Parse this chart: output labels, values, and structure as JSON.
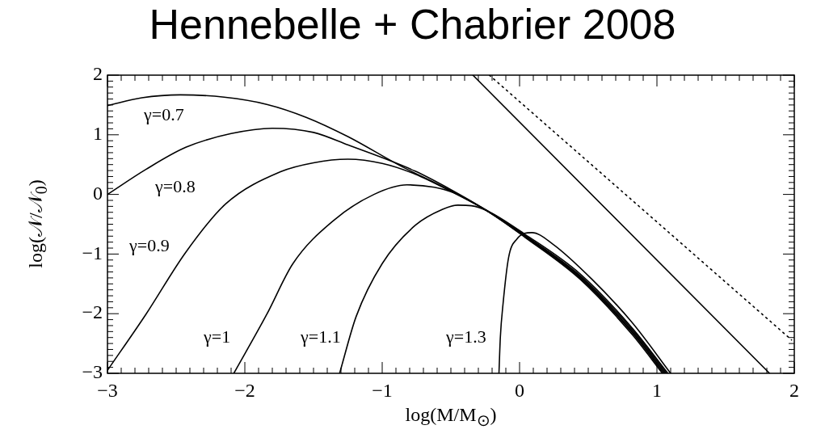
{
  "chart_data": {
    "type": "line",
    "title": "Hennebelle + Chabrier 2008",
    "xlabel": "log(M/M$_{⊙}$)",
    "ylabel": "log(𝒩/𝒩$_{0}$)",
    "xlim": [
      -3,
      2
    ],
    "xticks": [
      -3,
      -2,
      -1,
      0,
      1,
      2
    ],
    "ylim": [
      -3,
      2
    ],
    "yticks": [
      -3,
      -2,
      -1,
      0,
      1,
      2
    ],
    "grid": false,
    "legend": false,
    "series": [
      {
        "name": "γ=0.7",
        "color": "#000000",
        "x": [
          -3,
          -2.75,
          -2.47,
          -2.15,
          -1.84,
          -1.55,
          -1.25,
          -0.86,
          -0.55,
          -0.24,
          0.04,
          0.44,
          0.82,
          1.04
        ],
        "values": [
          1.49,
          1.62,
          1.67,
          1.63,
          1.51,
          1.29,
          0.97,
          0.47,
          0.12,
          -0.27,
          -0.72,
          -1.42,
          -2.35,
          -3
        ]
      },
      {
        "name": "γ=0.8",
        "color": "#000000",
        "x": [
          -3,
          -2.72,
          -2.43,
          -2.1,
          -1.8,
          -1.5,
          -1.25,
          -0.76,
          -0.5,
          -0.24,
          0.04,
          0.44,
          0.82,
          1.05
        ],
        "values": [
          0,
          0.42,
          0.79,
          1.02,
          1.11,
          1.04,
          0.83,
          0.39,
          0.08,
          -0.27,
          -0.71,
          -1.4,
          -2.32,
          -3
        ]
      },
      {
        "name": "γ=0.9",
        "color": "#000000",
        "x": [
          -3,
          -2.72,
          -2.43,
          -2.14,
          -1.74,
          -1.5,
          -1.25,
          -1,
          -0.76,
          -0.5,
          -0.24,
          0.04,
          0.44,
          0.82,
          1.06
        ],
        "values": [
          -2.95,
          -2.01,
          -0.97,
          -0.16,
          0.38,
          0.53,
          0.59,
          0.52,
          0.34,
          0.05,
          -0.27,
          -0.7,
          -1.38,
          -2.3,
          -3
        ]
      },
      {
        "name": "γ=1",
        "color": "#000000",
        "x": [
          -2.08,
          -1.84,
          -1.65,
          -1.35,
          -1.06,
          -0.82,
          -0.62,
          -0.47,
          -0.24,
          0.04,
          0.44,
          0.82,
          1.07
        ],
        "values": [
          -3,
          -2.01,
          -1.16,
          -0.43,
          0,
          0.16,
          0.12,
          0.02,
          -0.27,
          -0.69,
          -1.36,
          -2.27,
          -3
        ]
      },
      {
        "name": "γ=1.1",
        "color": "#000000",
        "x": [
          -1.31,
          -1.19,
          -1,
          -0.76,
          -0.56,
          -0.45,
          -0.35,
          -0.24,
          0.04,
          0.44,
          0.82,
          1.08
        ],
        "values": [
          -3,
          -2.05,
          -1.16,
          -0.52,
          -0.25,
          -0.18,
          -0.19,
          -0.27,
          -0.67,
          -1.33,
          -2.24,
          -3
        ]
      },
      {
        "name": "γ=1.3",
        "color": "#000000",
        "x": [
          -0.15,
          -0.14,
          -0.12,
          -0.08,
          -0.02,
          0.09,
          0.24,
          0.53,
          0.82,
          1.1
        ],
        "values": [
          -3,
          -2.4,
          -1.83,
          -1.06,
          -0.75,
          -0.64,
          -0.83,
          -1.43,
          -2.15,
          -3
        ]
      },
      {
        "color": "#000000",
        "x": [
          -0.34,
          1.82
        ],
        "values": [
          2,
          -3
        ]
      },
      {
        "color": "#000000",
        "line_style": "dotted",
        "x": [
          -0.22,
          1.98
        ],
        "values": [
          2,
          -2.44
        ]
      }
    ]
  }
}
